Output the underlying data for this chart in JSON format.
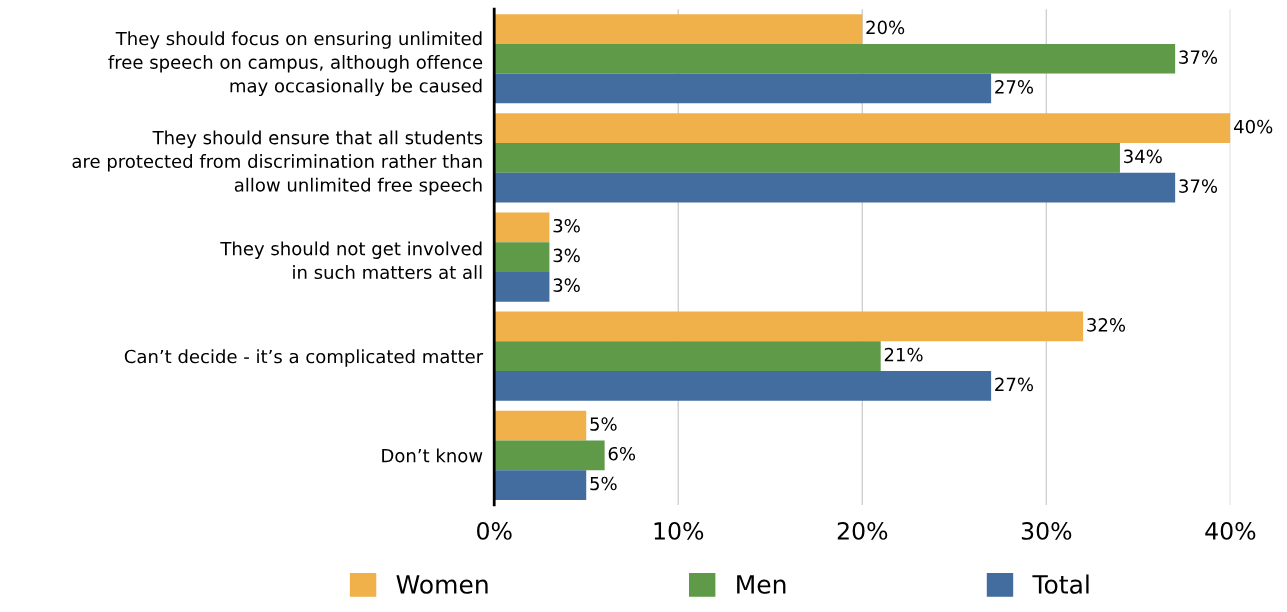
{
  "chart_data": {
    "type": "bar",
    "orientation": "horizontal",
    "categories": [
      "They should focus on ensuring unlimited\nfree speech on campus, although offence\nmay occasionally be caused",
      "They should ensure that all students\nare protected from discrimination rather than\nallow unlimited free speech",
      "They should not get involved\nin such matters at all",
      "Can’t decide - it’s a complicated matter",
      "Don’t know"
    ],
    "series": [
      {
        "name": "Women",
        "color": "#f0b04a",
        "values": [
          20,
          40,
          3,
          32,
          5
        ],
        "value_labels": [
          "20%",
          "40%",
          "3%",
          "32%",
          "5%"
        ]
      },
      {
        "name": "Men",
        "color": "#5e9a48",
        "values": [
          37,
          34,
          3,
          21,
          6
        ],
        "value_labels": [
          "37%",
          "34%",
          "3%",
          "21%",
          "6%"
        ]
      },
      {
        "name": "Total",
        "color": "#426d9e",
        "values": [
          27,
          37,
          3,
          27,
          5
        ],
        "value_labels": [
          "27%",
          "37%",
          "3%",
          "27%",
          "5%"
        ]
      }
    ],
    "xlim": [
      0,
      40
    ],
    "xticks": [
      {
        "value": 0,
        "label": "0%"
      },
      {
        "value": 10,
        "label": "10%"
      },
      {
        "value": 20,
        "label": "20%"
      },
      {
        "value": 30,
        "label": "30%"
      },
      {
        "value": 40,
        "label": "40%"
      }
    ],
    "grid": "x",
    "legend": "bottom"
  }
}
